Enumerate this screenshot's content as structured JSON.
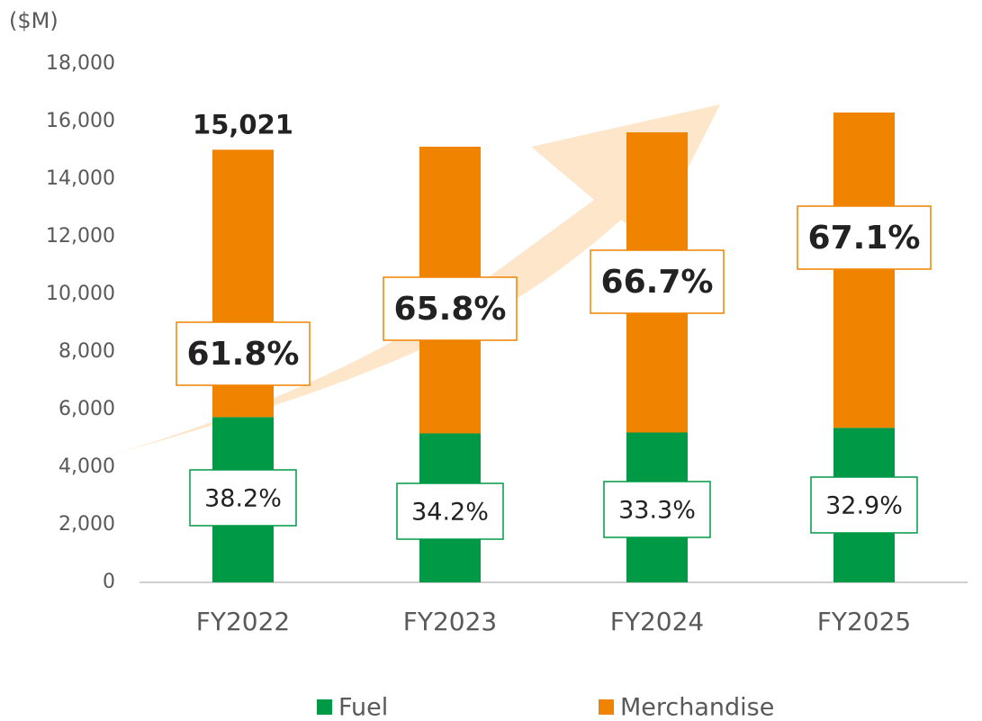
{
  "chart_data": {
    "type": "stacked_bar",
    "unit_label": "($M)",
    "categories": [
      "FY2022",
      "FY2023",
      "FY2024",
      "FY2025"
    ],
    "series": [
      {
        "name": "Fuel",
        "color": "#009a46",
        "values": [
          5738,
          5173,
          5203,
          5367
        ],
        "percent_labels": [
          "38.2%",
          "34.2%",
          "33.3%",
          "32.9%"
        ]
      },
      {
        "name": "Merchandise",
        "color": "#f08300",
        "values": [
          9283,
          9952,
          10422,
          10945
        ],
        "percent_labels": [
          "61.8%",
          "65.8%",
          "66.7%",
          "67.1%"
        ]
      }
    ],
    "total_label": {
      "category": "FY2022",
      "value": 15021,
      "label": "15,021"
    },
    "ylim": [
      0,
      18000
    ],
    "yticks": [
      0,
      {
        "value": 2000,
        "label": "2,000"
      },
      {
        "value": 4000,
        "label": "4,000"
      },
      {
        "value": 6000,
        "label": "6,000"
      },
      {
        "value": 8000,
        "label": "8,000"
      },
      {
        "value": 10000,
        "label": "10,000"
      },
      {
        "value": 12000,
        "label": "12,000"
      },
      {
        "value": 14000,
        "label": "14,000"
      },
      {
        "value": 16000,
        "label": "16,000"
      },
      {
        "value": 18000,
        "label": "18,000"
      }
    ],
    "legend": "bottom"
  }
}
